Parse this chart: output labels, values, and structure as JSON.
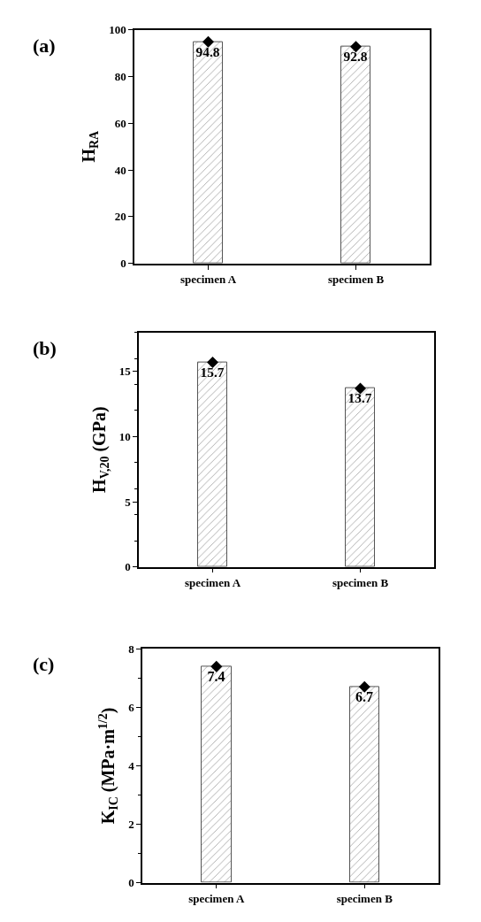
{
  "chart_data": [
    {
      "type": "bar",
      "title": "(a)",
      "ylabel": "H$_{RA}$",
      "categories": [
        "specimen A",
        "specimen B"
      ],
      "ylim": [
        0,
        100
      ],
      "yticks": [
        0,
        20,
        40,
        60,
        80,
        100
      ],
      "marker": "diamond",
      "series": [
        {
          "color": "#555555",
          "values": [
            94.8,
            92.8
          ],
          "value_labels": [
            "94.8",
            "92.8"
          ]
        },
        {
          "type": "scatter",
          "x": [
            "specimen A",
            "specimen B"
          ],
          "color": "#000000",
          "values": [
            94.8,
            92.8
          ]
        }
      ]
    },
    {
      "type": "bar",
      "title": "(b)",
      "ylabel": "H$_{V,20}$ (GPa)",
      "categories": [
        "specimen A",
        "specimen B"
      ],
      "ylim": [
        0,
        18
      ],
      "yticks": [
        0,
        5,
        10,
        15
      ],
      "marker": "diamond",
      "series": [
        {
          "color": "#555555",
          "values": [
            15.7,
            13.7
          ],
          "value_labels": [
            "15.7",
            "13.7"
          ]
        },
        {
          "type": "scatter",
          "x": [
            "specimen A",
            "specimen B"
          ],
          "color": "#000000",
          "values": [
            15.7,
            13.7
          ]
        }
      ]
    },
    {
      "type": "bar",
      "title": "(c)",
      "ylabel": "K$_{IC}$ (MPa·m$^{1/2}$)",
      "categories": [
        "specimen A",
        "specimen B"
      ],
      "ylim": [
        0,
        8
      ],
      "yticks": [
        0,
        2,
        4,
        6,
        8
      ],
      "marker": "diamond",
      "series": [
        {
          "color": "#555555",
          "values": [
            7.4,
            6.7
          ],
          "value_labels": [
            "7.4",
            "6.7"
          ]
        },
        {
          "type": "scatter",
          "x": [
            "specimen A",
            "specimen B"
          ],
          "color": "#000000",
          "values": [
            7.4,
            6.7
          ]
        }
      ]
    }
  ]
}
